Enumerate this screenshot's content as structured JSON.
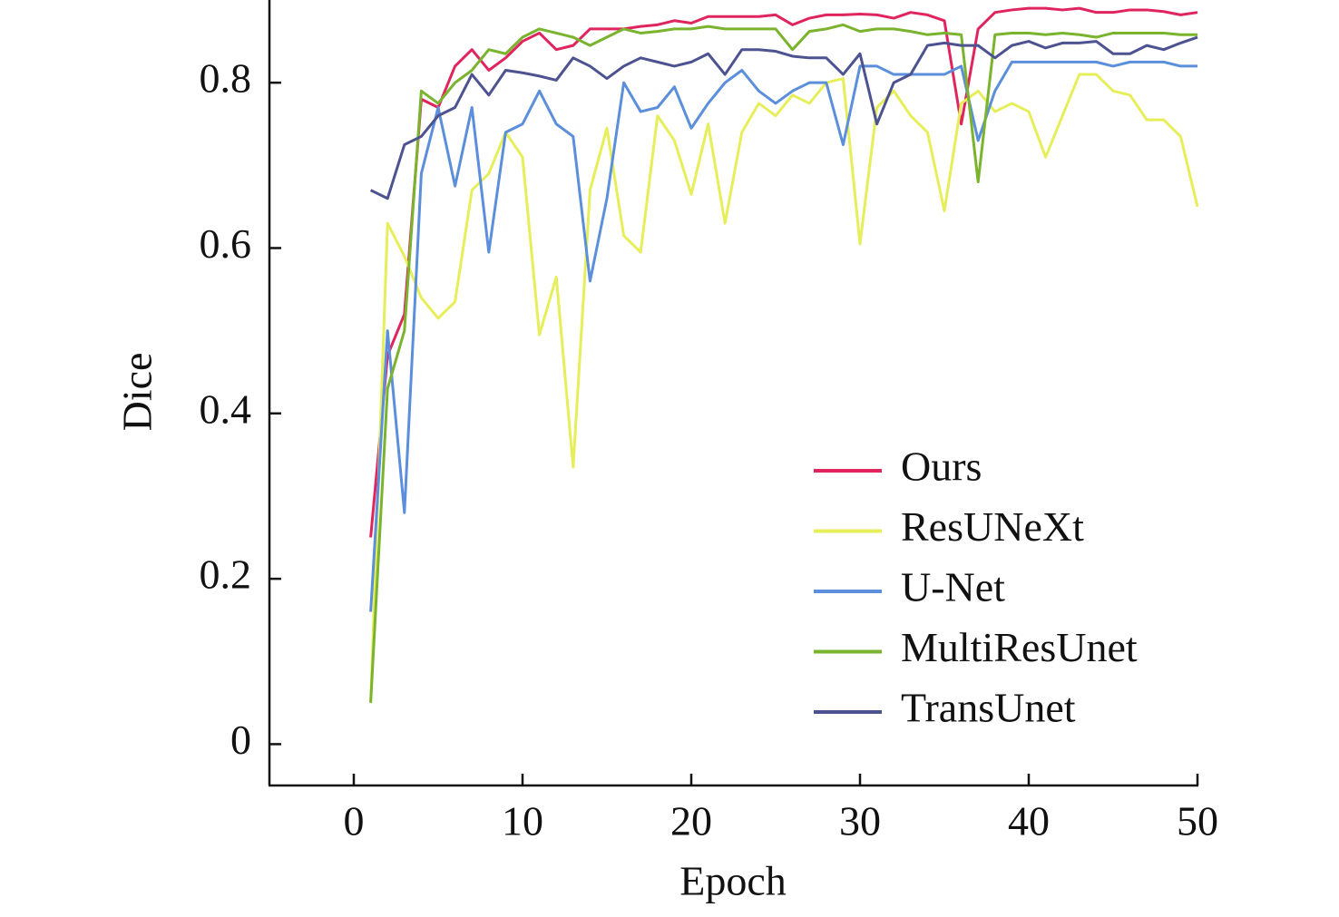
{
  "chart_data": {
    "type": "line",
    "xlabel": "Epoch",
    "ylabel": "Dice",
    "x": [
      1,
      2,
      3,
      4,
      5,
      6,
      7,
      8,
      9,
      10,
      11,
      12,
      13,
      14,
      15,
      16,
      17,
      18,
      19,
      20,
      21,
      22,
      23,
      24,
      25,
      26,
      27,
      28,
      29,
      30,
      31,
      32,
      33,
      34,
      35,
      36,
      37,
      38,
      39,
      40,
      41,
      42,
      43,
      44,
      45,
      46,
      47,
      48,
      49,
      50
    ],
    "xlim": [
      -5,
      50
    ],
    "xticks": [
      0,
      10,
      20,
      30,
      40,
      50
    ],
    "ylim": [
      -0.05,
      0.9
    ],
    "yticks": [
      0,
      0.2,
      0.4,
      0.6,
      0.8
    ],
    "legend": "lower right",
    "series": [
      {
        "name": "Ours",
        "color": "#e0245e",
        "values": [
          0.25,
          0.47,
          0.52,
          0.78,
          0.77,
          0.82,
          0.84,
          0.815,
          0.83,
          0.85,
          0.86,
          0.84,
          0.845,
          0.865,
          0.865,
          0.865,
          0.868,
          0.87,
          0.875,
          0.872,
          0.88,
          0.88,
          0.88,
          0.88,
          0.882,
          0.87,
          0.878,
          0.882,
          0.882,
          0.883,
          0.882,
          0.878,
          0.885,
          0.882,
          0.875,
          0.75,
          0.865,
          0.885,
          0.888,
          0.89,
          0.89,
          0.888,
          0.89,
          0.885,
          0.885,
          0.888,
          0.888,
          0.886,
          0.882,
          0.885
        ]
      },
      {
        "name": "ResUNeXt",
        "color": "#e6ee5a",
        "values": [
          0.05,
          0.63,
          0.59,
          0.54,
          0.515,
          0.535,
          0.67,
          0.69,
          0.74,
          0.71,
          0.495,
          0.565,
          0.335,
          0.67,
          0.745,
          0.615,
          0.595,
          0.76,
          0.73,
          0.665,
          0.75,
          0.63,
          0.74,
          0.775,
          0.76,
          0.785,
          0.775,
          0.8,
          0.805,
          0.605,
          0.77,
          0.79,
          0.76,
          0.74,
          0.645,
          0.775,
          0.79,
          0.765,
          0.775,
          0.765,
          0.71,
          0.76,
          0.81,
          0.81,
          0.79,
          0.785,
          0.755,
          0.755,
          0.735,
          0.65
        ]
      },
      {
        "name": "U-Net",
        "color": "#5b8fdb",
        "values": [
          0.16,
          0.5,
          0.28,
          0.69,
          0.77,
          0.675,
          0.77,
          0.595,
          0.74,
          0.75,
          0.79,
          0.75,
          0.735,
          0.56,
          0.66,
          0.8,
          0.765,
          0.77,
          0.795,
          0.745,
          0.775,
          0.8,
          0.815,
          0.79,
          0.775,
          0.79,
          0.8,
          0.8,
          0.725,
          0.82,
          0.82,
          0.81,
          0.81,
          0.81,
          0.81,
          0.82,
          0.73,
          0.79,
          0.825,
          0.825,
          0.825,
          0.825,
          0.825,
          0.825,
          0.82,
          0.825,
          0.825,
          0.825,
          0.82,
          0.82
        ]
      },
      {
        "name": "MultiResUnet",
        "color": "#7ab32e",
        "values": [
          0.05,
          0.43,
          0.5,
          0.79,
          0.775,
          0.8,
          0.815,
          0.84,
          0.835,
          0.855,
          0.865,
          0.86,
          0.855,
          0.845,
          0.855,
          0.865,
          0.86,
          0.862,
          0.865,
          0.865,
          0.868,
          0.865,
          0.865,
          0.865,
          0.865,
          0.84,
          0.862,
          0.865,
          0.87,
          0.862,
          0.865,
          0.865,
          0.862,
          0.858,
          0.86,
          0.858,
          0.68,
          0.858,
          0.86,
          0.86,
          0.858,
          0.86,
          0.858,
          0.855,
          0.86,
          0.86,
          0.86,
          0.86,
          0.858,
          0.858
        ]
      },
      {
        "name": "TransUnet",
        "color": "#4d5290",
        "values": [
          0.67,
          0.66,
          0.725,
          0.735,
          0.76,
          0.77,
          0.81,
          0.785,
          0.815,
          0.812,
          0.808,
          0.803,
          0.83,
          0.82,
          0.805,
          0.82,
          0.83,
          0.825,
          0.82,
          0.825,
          0.835,
          0.81,
          0.84,
          0.84,
          0.838,
          0.832,
          0.83,
          0.83,
          0.81,
          0.835,
          0.75,
          0.8,
          0.81,
          0.845,
          0.848,
          0.845,
          0.845,
          0.83,
          0.845,
          0.85,
          0.842,
          0.848,
          0.848,
          0.85,
          0.835,
          0.835,
          0.845,
          0.84,
          0.848,
          0.855
        ]
      }
    ]
  }
}
